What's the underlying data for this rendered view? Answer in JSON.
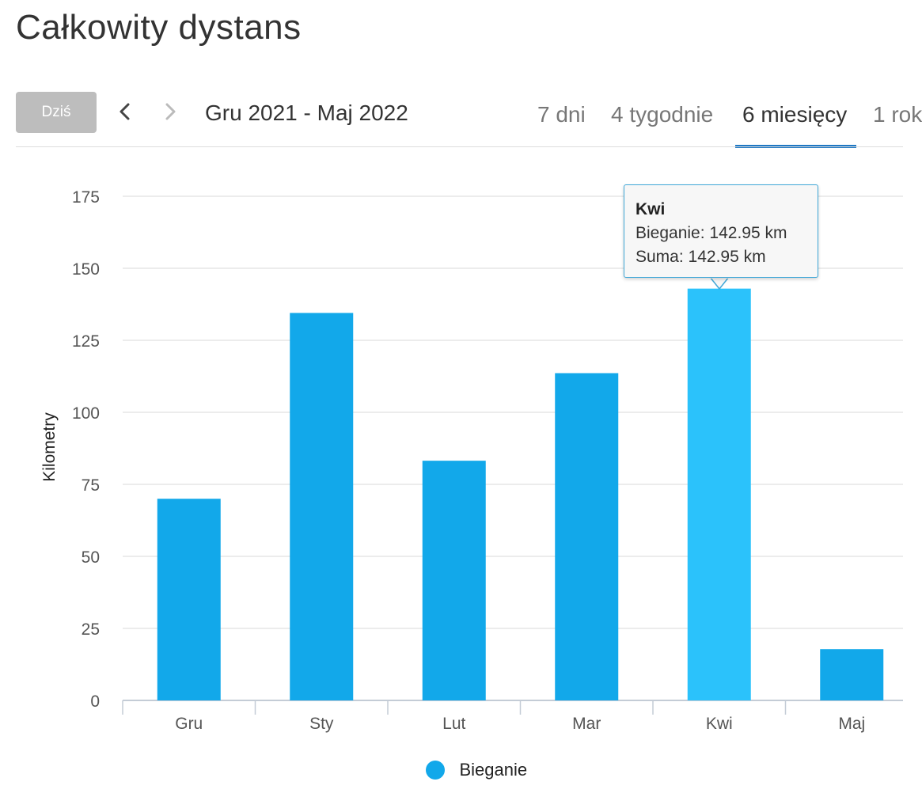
{
  "page": {
    "title": "Całkowity dystans"
  },
  "toolbar": {
    "today_label": "Dziś",
    "prev_icon": "chevron-left-icon",
    "next_icon": "chevron-right-icon",
    "date_range": "Gru 2021 - Maj 2022",
    "tabs": [
      {
        "label": "7 dni",
        "active": false
      },
      {
        "label": "4 tygodnie",
        "active": false
      },
      {
        "label": "6 miesięcy",
        "active": true
      },
      {
        "label": "1 rok",
        "active": false
      }
    ],
    "active_color": "#1f78c4"
  },
  "chart_data": {
    "type": "bar",
    "categories": [
      "Gru",
      "Sty",
      "Lut",
      "Mar",
      "Kwi",
      "Maj"
    ],
    "series": [
      {
        "name": "Bieganie",
        "values": [
          70,
          134.5,
          83.2,
          113.6,
          142.95,
          17.8
        ],
        "color": "#12a8ea",
        "highlight_color": "#2bc2fb"
      }
    ],
    "highlighted_index": 4,
    "ylabel": "Kilometry",
    "xlabel": "",
    "ylim": [
      0,
      175
    ],
    "yticks": [
      0,
      25,
      50,
      75,
      100,
      125,
      150,
      175
    ],
    "grid": true,
    "legend": "bottom",
    "tooltip": {
      "title": "Kwi",
      "lines": [
        "Bieganie: 142.95 km",
        "Suma: 142.95 km"
      ]
    }
  }
}
